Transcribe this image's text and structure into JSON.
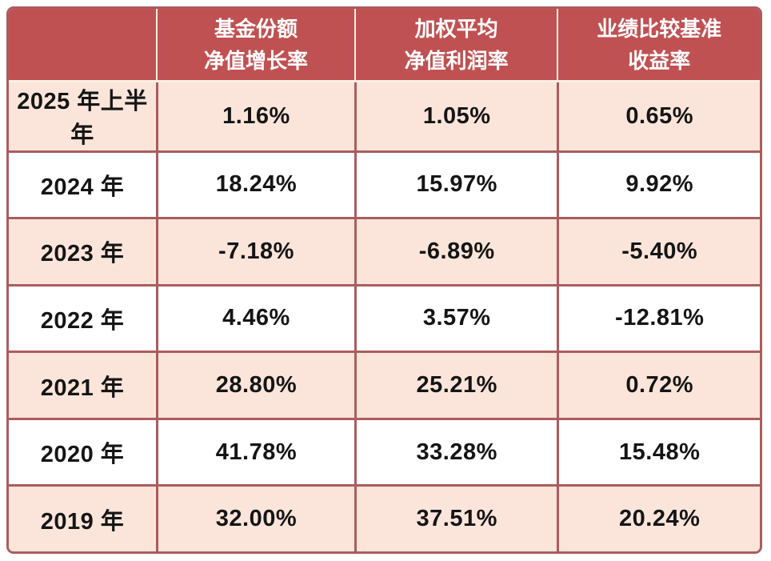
{
  "colors": {
    "header_bg": "#C05152",
    "header_text": "#FFFFFF",
    "header_separator": "#FAEFE2",
    "border": "#AC5C5E",
    "row_pink": "#FBE5DA",
    "row_white": "#FFFFFF",
    "body_text": "#151515"
  },
  "chart_data": {
    "type": "table",
    "header": {
      "period_label": "",
      "columns": [
        {
          "line1": "基金份额",
          "line2": "净值增长率"
        },
        {
          "line1": "加权平均",
          "line2": "净值利润率"
        },
        {
          "line1": "业绩比较基准",
          "line2": "收益率"
        }
      ]
    },
    "rows": [
      {
        "period": "2025 年上半年",
        "values": [
          "1.16%",
          "1.05%",
          "0.65%"
        ]
      },
      {
        "period": "2024 年",
        "values": [
          "18.24%",
          "15.97%",
          "9.92%"
        ]
      },
      {
        "period": "2023 年",
        "values": [
          "-7.18%",
          "-6.89%",
          "-5.40%"
        ]
      },
      {
        "period": "2022 年",
        "values": [
          "4.46%",
          "3.57%",
          "-12.81%"
        ]
      },
      {
        "period": "2021 年",
        "values": [
          "28.80%",
          "25.21%",
          "0.72%"
        ]
      },
      {
        "period": "2020 年",
        "values": [
          "41.78%",
          "33.28%",
          "15.48%"
        ]
      },
      {
        "period": "2019 年",
        "values": [
          "32.00%",
          "37.51%",
          "20.24%"
        ]
      }
    ]
  }
}
